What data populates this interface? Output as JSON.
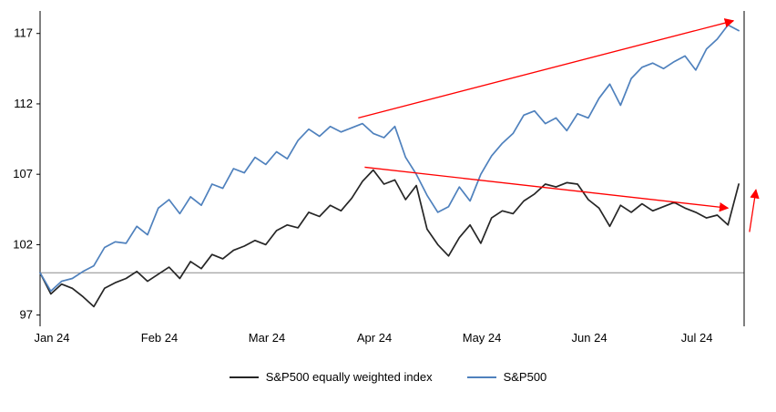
{
  "chart_data": {
    "type": "line",
    "title": "",
    "xlabel": "",
    "ylabel": "",
    "grid": "off",
    "legend_position": "bottom-center",
    "axis_color": "#000000",
    "tick_font_color": "#000000",
    "xlim": [
      0,
      6.55
    ],
    "ylim": [
      96.2,
      118.6
    ],
    "y_ticks": [
      117,
      112,
      107,
      102,
      97
    ],
    "x_ticks": [
      {
        "pos": 0,
        "label": "Jan 24"
      },
      {
        "pos": 1,
        "label": "Feb 24"
      },
      {
        "pos": 2,
        "label": "Mar 24"
      },
      {
        "pos": 3,
        "label": "Apr 24"
      },
      {
        "pos": 4,
        "label": "May 24"
      },
      {
        "pos": 5,
        "label": "Jun 24"
      },
      {
        "pos": 6,
        "label": "Jul 24"
      }
    ],
    "baseline": {
      "value": 100,
      "color": "#8c8c8c"
    },
    "x": [
      0.0,
      0.1,
      0.2,
      0.3,
      0.4,
      0.5,
      0.6,
      0.7,
      0.8,
      0.9,
      1.0,
      1.1,
      1.2,
      1.3,
      1.4,
      1.5,
      1.6,
      1.7,
      1.8,
      1.9,
      2.0,
      2.1,
      2.2,
      2.3,
      2.4,
      2.5,
      2.6,
      2.7,
      2.8,
      2.9,
      3.0,
      3.1,
      3.2,
      3.3,
      3.4,
      3.5,
      3.6,
      3.7,
      3.8,
      3.9,
      4.0,
      4.1,
      4.2,
      4.3,
      4.4,
      4.5,
      4.6,
      4.7,
      4.8,
      4.9,
      5.0,
      5.1,
      5.2,
      5.3,
      5.4,
      5.5,
      5.6,
      5.7,
      5.8,
      5.9,
      6.0,
      6.1,
      6.2,
      6.3,
      6.4,
      6.5
    ],
    "series": [
      {
        "name": "S&P500 equally weighted index",
        "color": "#262626",
        "values": [
          100.0,
          98.5,
          99.2,
          98.9,
          98.3,
          97.6,
          98.9,
          99.3,
          99.6,
          100.1,
          99.4,
          99.9,
          100.4,
          99.6,
          100.8,
          100.3,
          101.3,
          101.0,
          101.6,
          101.9,
          102.3,
          102.0,
          103.0,
          103.4,
          103.2,
          104.3,
          104.0,
          104.8,
          104.4,
          105.3,
          106.5,
          107.3,
          106.3,
          106.6,
          105.2,
          106.2,
          103.1,
          102.0,
          101.2,
          102.5,
          103.4,
          102.1,
          103.9,
          104.4,
          104.2,
          105.1,
          105.6,
          106.3,
          106.1,
          106.4,
          106.3,
          105.2,
          104.6,
          103.3,
          104.8,
          104.3,
          104.9,
          104.4,
          104.7,
          105.0,
          104.6,
          104.3,
          103.9,
          104.1,
          103.4,
          106.3
        ]
      },
      {
        "name": "S&P500",
        "color": "#4f81bd",
        "values": [
          100.0,
          98.7,
          99.4,
          99.6,
          100.1,
          100.5,
          101.8,
          102.2,
          102.1,
          103.3,
          102.7,
          104.6,
          105.2,
          104.2,
          105.4,
          104.8,
          106.3,
          106.0,
          107.4,
          107.1,
          108.2,
          107.7,
          108.6,
          108.1,
          109.4,
          110.2,
          109.7,
          110.4,
          110.0,
          110.3,
          110.6,
          109.9,
          109.6,
          110.4,
          108.2,
          107.0,
          105.5,
          104.3,
          104.7,
          106.1,
          105.1,
          107.0,
          108.3,
          109.2,
          109.9,
          111.2,
          111.5,
          110.6,
          111.0,
          110.1,
          111.3,
          111.0,
          112.4,
          113.4,
          111.9,
          113.8,
          114.6,
          114.9,
          114.5,
          115.0,
          115.4,
          114.4,
          115.9,
          116.6,
          117.6,
          117.2
        ]
      }
    ],
    "annotations": {
      "color": "#ff0000",
      "arrows": [
        {
          "x1": 2.96,
          "y1": 111.0,
          "x2": 6.45,
          "y2": 117.9
        },
        {
          "x1": 3.02,
          "y1": 107.5,
          "x2": 6.4,
          "y2": 104.6
        },
        {
          "x1": 6.6,
          "y1": 102.9,
          "x2": 6.66,
          "y2": 105.9
        }
      ]
    }
  },
  "legend": {
    "items": [
      {
        "label": "S&P500 equally weighted index"
      },
      {
        "label": "S&P500"
      }
    ]
  }
}
